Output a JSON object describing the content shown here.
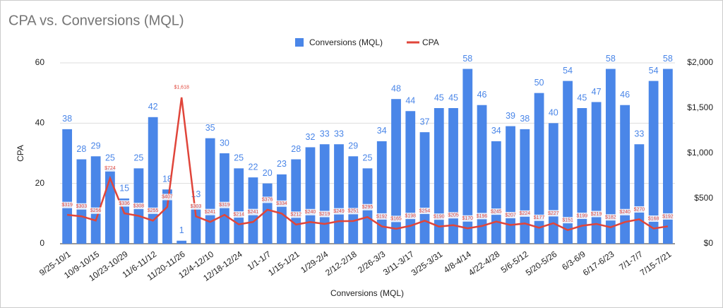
{
  "chart_data": {
    "type": "combo",
    "title": "CPA vs. Conversions (MQL)",
    "x_label": "Conversions (MQL)",
    "y_label": "CPA",
    "categories": [
      "9/25-10/1",
      null,
      "10/9-10/15",
      null,
      "10/23-10/29",
      null,
      "11/6-11/12",
      null,
      "11/20-11/26",
      null,
      "12/4-12/10",
      null,
      "12/18-12/24",
      null,
      "1/1-1/7",
      null,
      "1/15-1/21",
      null,
      "1/29-2/4",
      null,
      "2/12-2/18",
      null,
      "2/26-3/3",
      null,
      "3/11-3/17",
      null,
      "3/25-3/31",
      null,
      "4/8-4/14",
      null,
      "4/22-4/28",
      null,
      "5/6-5/12",
      null,
      "5/20-5/26",
      null,
      "6/3-6/9",
      null,
      "6/17-6/23",
      null,
      "7/1-7/7",
      null,
      "7/15-7/21"
    ],
    "series": [
      {
        "name": "Conversions (MQL)",
        "type": "bar",
        "color": "#4a86e8",
        "values": [
          38,
          28,
          29,
          25,
          15,
          25,
          42,
          18,
          1,
          13,
          35,
          30,
          25,
          22,
          20,
          23,
          28,
          32,
          33,
          33,
          29,
          25,
          34,
          48,
          44,
          37,
          45,
          45,
          58,
          46,
          34,
          39,
          38,
          50,
          40,
          54,
          45,
          47,
          58,
          46,
          33,
          54,
          58
        ]
      },
      {
        "name": "CPA",
        "type": "line",
        "axis": "y2",
        "color": "#e0453a",
        "values": [
          319,
          303,
          256,
          724,
          336,
          308,
          255,
          407,
          1618,
          303,
          241,
          319,
          214,
          241,
          376,
          334,
          212,
          240,
          219,
          249,
          251,
          295,
          192,
          165,
          198,
          254,
          190,
          205,
          170,
          196,
          245,
          207,
          224,
          177,
          227,
          151,
          199,
          219,
          182,
          240,
          270,
          168,
          192
        ],
        "value_labels": [
          "$319",
          "$303",
          "$256",
          "$724",
          "$336",
          "$308",
          "$255",
          "$407",
          "$1,618",
          "$303",
          "$241",
          "$319",
          "$214",
          "$241",
          "$376",
          "$334",
          "$212",
          "$240",
          "$219",
          "$249",
          "$251",
          "$295",
          "$192",
          "$165",
          "$198",
          "$254",
          "$190",
          "$205",
          "$170",
          "$196",
          "$245",
          "$207",
          "$224",
          "$177",
          "$227",
          "$151",
          "$199",
          "$219",
          "$182",
          "$240",
          "$270",
          "$168",
          "$192"
        ]
      }
    ],
    "ylim": [
      0,
      60
    ],
    "yticks": [
      0,
      20,
      40,
      60
    ],
    "y2lim": [
      0,
      2000
    ],
    "y2ticks": [
      {
        "value": 0,
        "label": "$0"
      },
      {
        "value": 500,
        "label": "$500"
      },
      {
        "value": 1000,
        "label": "$1,000"
      },
      {
        "value": 1500,
        "label": "$1,500"
      },
      {
        "value": 2000,
        "label": "$2,000"
      }
    ],
    "grid": true,
    "legend": "top"
  }
}
